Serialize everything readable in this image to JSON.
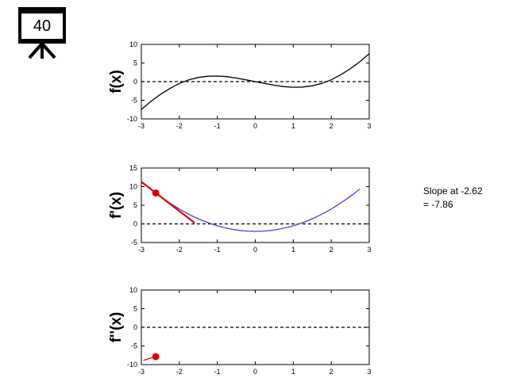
{
  "slide_badge": {
    "number": "40",
    "icon": "presentation-board-icon"
  },
  "annotation": {
    "line1": "Slope at -2.62",
    "line2": "= -7.86"
  },
  "colors": {
    "function": "#000000",
    "derivative": "#4444dd",
    "highlight": "#dd0000",
    "zero_line": "#000000"
  },
  "chart_data": [
    {
      "type": "line",
      "ylabel": "f(x)",
      "xlim": [
        -3,
        3
      ],
      "ylim": [
        -10,
        10
      ],
      "xticks": [
        -3,
        -2,
        -1,
        0,
        1,
        2,
        3
      ],
      "yticks": [
        -10,
        -5,
        0,
        5,
        10
      ],
      "zero_line": true,
      "series": [
        {
          "x": [
            -3,
            -2.75,
            -2.5,
            -2.25,
            -2,
            -1.75,
            -1.5,
            -1.25,
            -1,
            -0.75,
            -0.5,
            -0.25,
            0,
            0.25,
            0.5,
            0.75,
            1,
            1.25,
            1.5,
            1.75,
            2,
            2.25,
            2.5,
            2.75,
            3
          ],
          "y": [
            -7.5,
            -5.32,
            -3.44,
            -1.85,
            -0.5,
            0.49,
            1.13,
            1.45,
            1.5,
            1.33,
            0.96,
            0.49,
            0,
            -0.49,
            -0.96,
            -1.33,
            -1.5,
            -1.45,
            -1.13,
            -0.49,
            0.5,
            1.85,
            3.44,
            5.32,
            7.5
          ]
        }
      ]
    },
    {
      "type": "line",
      "ylabel": "f'(x)",
      "xlim": [
        -3,
        3
      ],
      "ylim": [
        -5,
        15
      ],
      "xticks": [
        -3,
        -2,
        -1,
        0,
        1,
        2,
        3
      ],
      "yticks": [
        -5,
        0,
        5,
        10,
        15
      ],
      "zero_line": true,
      "series": [
        {
          "x": [
            -2.62,
            -2.4,
            -2.2,
            -2,
            -1.8,
            -1.6,
            -1.4,
            -1.2,
            -1,
            -0.8,
            -0.6,
            -0.4,
            -0.2,
            0,
            0.2,
            0.4,
            0.6,
            0.8,
            1,
            1.2,
            1.4,
            1.6,
            1.8,
            2,
            2.2,
            2.4,
            2.6,
            2.75
          ],
          "y": [
            8.3,
            6.64,
            5.26,
            4,
            2.86,
            1.84,
            0.94,
            0.16,
            -0.5,
            -1.04,
            -1.46,
            -1.76,
            -1.94,
            -2,
            -1.94,
            -1.76,
            -1.46,
            -1.04,
            -0.5,
            0.16,
            0.94,
            1.84,
            2.86,
            4,
            5.26,
            6.64,
            8.14,
            9.34
          ]
        }
      ],
      "tangent": {
        "x": [
          -3,
          -1.6
        ],
        "y": [
          11.3,
          0.3
        ]
      },
      "point": {
        "x": -2.62,
        "y": 8.3
      }
    },
    {
      "type": "line",
      "ylabel": "f''(x)",
      "xlim": [
        -3,
        3
      ],
      "ylim": [
        -10,
        10
      ],
      "xticks": [
        -3,
        -2,
        -1,
        0,
        1,
        2,
        3
      ],
      "yticks": [
        -10,
        -5,
        0,
        5,
        10
      ],
      "zero_line": true,
      "series": [
        {
          "x": [
            -2.95,
            -2.8,
            -2.62
          ],
          "y": [
            -8.9,
            -8.4,
            -7.86
          ]
        }
      ],
      "point": {
        "x": -2.62,
        "y": -7.86
      }
    }
  ]
}
